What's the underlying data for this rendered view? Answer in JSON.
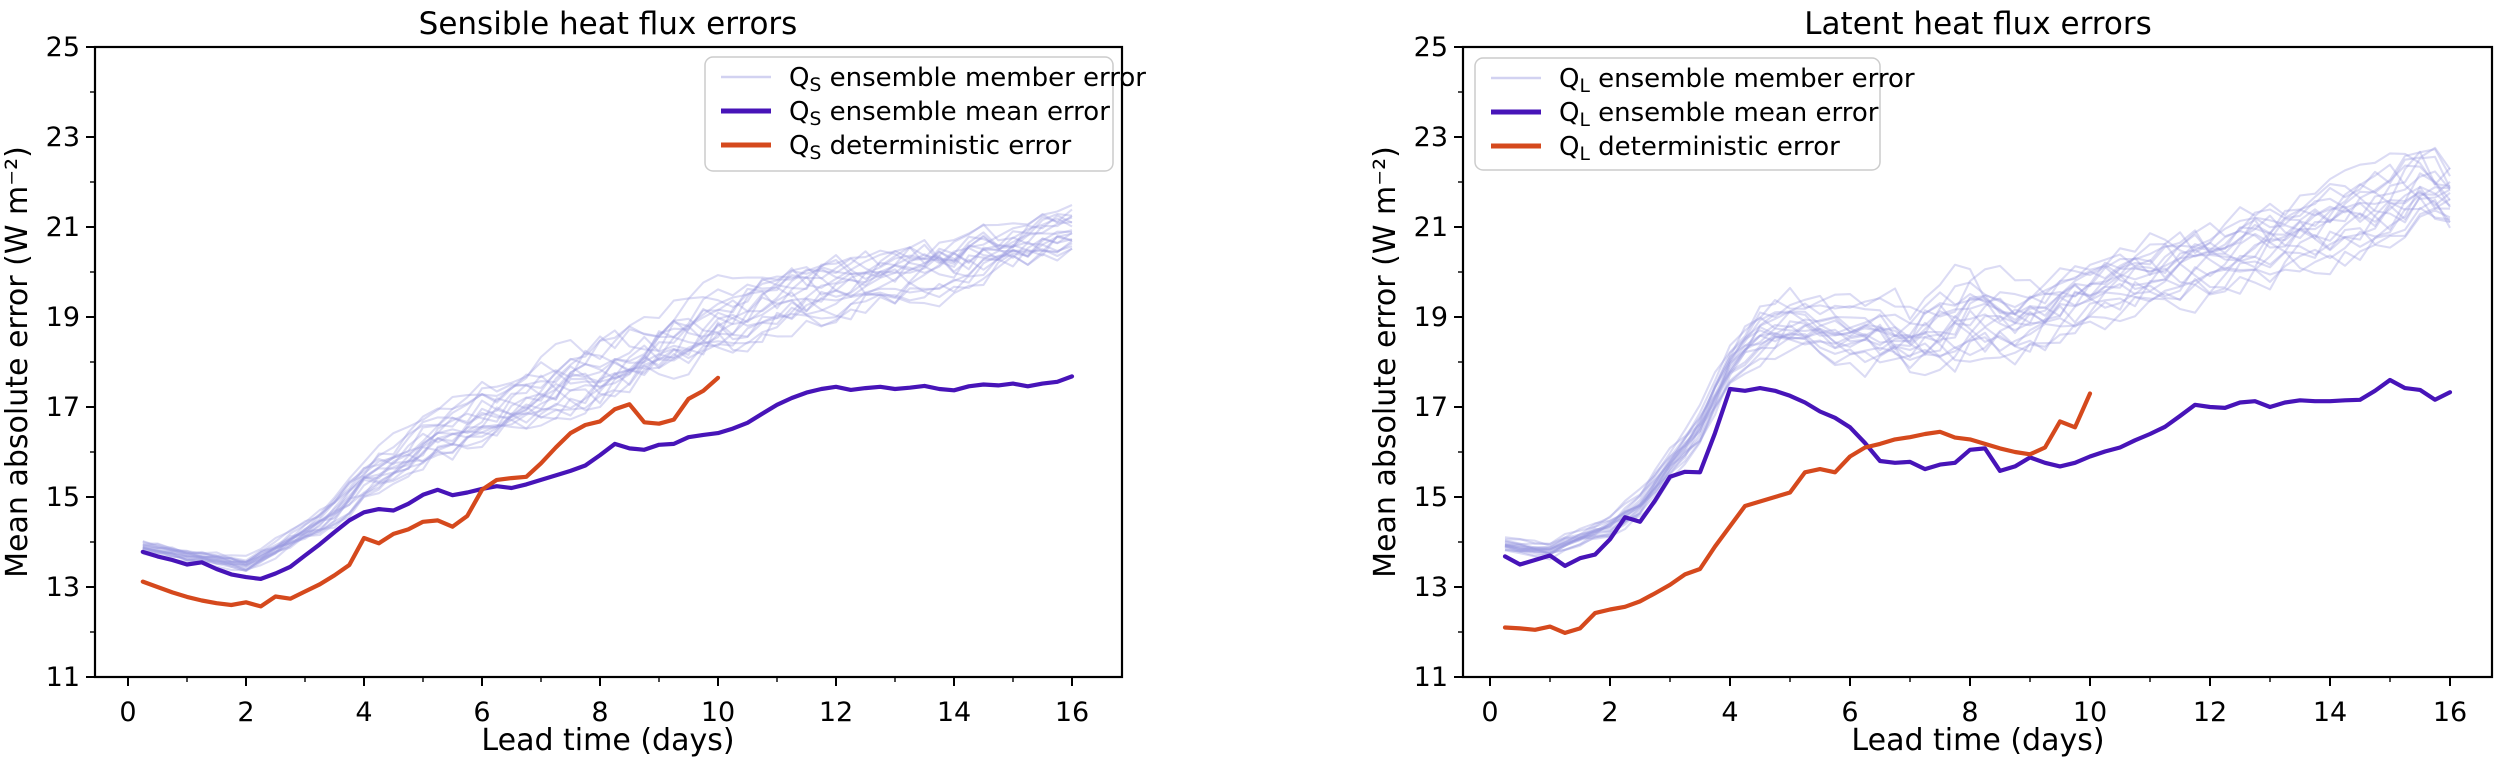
{
  "figure": {
    "background": "#ffffff",
    "description": "Two side-by-side line charts comparing forecast errors of sensible and latent heat flux"
  },
  "chart_data": [
    {
      "type": "line",
      "title": "Sensible heat flux errors",
      "xlabel": "Lead time (days)",
      "ylabel": "Mean absolute error (W m⁻²)",
      "xlim": [
        -0.55,
        16.85
      ],
      "ylim": [
        11,
        25
      ],
      "xticks": [
        0,
        2,
        4,
        6,
        8,
        10,
        12,
        14,
        16
      ],
      "xminorticks": [
        1,
        3,
        5,
        7,
        9,
        11,
        13,
        15
      ],
      "yticks": [
        11,
        13,
        15,
        17,
        19,
        21,
        23,
        25
      ],
      "yminorticks": [
        12,
        14,
        16,
        18,
        20,
        22,
        24
      ],
      "grid": false,
      "legend_position": "upper right",
      "series": [
        {
          "id": "members",
          "label": {
            "base": "Q",
            "sub": "S",
            "rest": "ensemble member error"
          },
          "kind": "ensemble",
          "color": "#9b9be1",
          "opacity": 0.36,
          "line_width": 2.1,
          "count": 20,
          "seed": 7,
          "x_start": 0.25,
          "x_step": 0.25,
          "x_end": 16,
          "envelope_x": [
            0.25,
            1,
            2,
            3,
            3.5,
            4,
            4.5,
            5,
            5.5,
            6,
            6.5,
            7,
            7.5,
            8,
            8.5,
            9,
            9.5,
            10,
            11,
            12,
            13,
            14,
            15,
            16
          ],
          "envelope_low": [
            13.63,
            13.5,
            13.3,
            13.9,
            14.2,
            14.7,
            15.0,
            15.3,
            15.6,
            15.9,
            16.1,
            16.3,
            16.55,
            16.8,
            17.05,
            17.3,
            17.55,
            17.8,
            18.3,
            18.7,
            19.0,
            19.3,
            19.7,
            20.25
          ],
          "envelope_high": [
            14.12,
            13.9,
            13.7,
            14.55,
            15.1,
            15.9,
            16.4,
            16.9,
            17.3,
            17.7,
            17.95,
            18.25,
            18.5,
            18.75,
            19.0,
            19.3,
            19.6,
            19.9,
            20.3,
            20.6,
            20.85,
            21.1,
            21.35,
            21.6
          ]
        },
        {
          "id": "ensemble-mean",
          "label": {
            "base": "Q",
            "sub": "S",
            "rest": "ensemble mean error"
          },
          "kind": "line",
          "color": "#4714b8",
          "opacity": 1,
          "line_width": 4.2,
          "x_start": 0.25,
          "x_step": 0.25,
          "values": [
            13.78,
            13.68,
            13.6,
            13.5,
            13.55,
            13.4,
            13.28,
            13.22,
            13.18,
            13.3,
            13.45,
            13.7,
            13.95,
            14.22,
            14.48,
            14.66,
            14.73,
            14.7,
            14.85,
            15.05,
            15.16,
            15.04,
            15.1,
            15.18,
            15.24,
            15.2,
            15.28,
            15.38,
            15.48,
            15.58,
            15.7,
            15.93,
            16.18,
            16.08,
            16.05,
            16.16,
            16.18,
            16.33,
            16.38,
            16.42,
            16.52,
            16.65,
            16.85,
            17.05,
            17.2,
            17.32,
            17.4,
            17.45,
            17.38,
            17.42,
            17.45,
            17.4,
            17.43,
            17.47,
            17.4,
            17.37,
            17.46,
            17.5,
            17.48,
            17.52,
            17.46,
            17.52,
            17.56,
            17.68
          ]
        },
        {
          "id": "deterministic",
          "label": {
            "base": "Q",
            "sub": "S",
            "rest": "deterministic error"
          },
          "kind": "line",
          "color": "#d5491d",
          "opacity": 1,
          "line_width": 4.2,
          "x_start": 0.25,
          "x_step": 0.25,
          "values": [
            13.12,
            13.0,
            12.88,
            12.78,
            12.7,
            12.64,
            12.6,
            12.66,
            12.57,
            12.79,
            12.74,
            12.9,
            13.06,
            13.26,
            13.49,
            14.09,
            13.97,
            14.18,
            14.28,
            14.45,
            14.48,
            14.34,
            14.58,
            15.16,
            15.38,
            15.42,
            15.45,
            15.75,
            16.1,
            16.42,
            16.6,
            16.68,
            16.95,
            17.06,
            16.66,
            16.63,
            16.72,
            17.18,
            17.36,
            17.65
          ]
        }
      ]
    },
    {
      "type": "line",
      "title": "Latent heat flux errors",
      "xlabel": "Lead time (days)",
      "ylabel": "Mean absolute error (W m⁻²)",
      "xlim": [
        -0.45,
        16.7
      ],
      "ylim": [
        11,
        25
      ],
      "xticks": [
        0,
        2,
        4,
        6,
        8,
        10,
        12,
        14,
        16
      ],
      "xminorticks": [
        1,
        3,
        5,
        7,
        9,
        11,
        13,
        15
      ],
      "yticks": [
        11,
        13,
        15,
        17,
        19,
        21,
        23,
        25
      ],
      "yminorticks": [
        12,
        14,
        16,
        18,
        20,
        22,
        24
      ],
      "grid": false,
      "legend_position": "upper left",
      "series": [
        {
          "id": "members",
          "label": {
            "base": "Q",
            "sub": "L",
            "rest": "ensemble member error"
          },
          "kind": "ensemble",
          "color": "#9b9be1",
          "opacity": 0.36,
          "line_width": 2.1,
          "count": 20,
          "seed": 11,
          "x_start": 0.25,
          "x_step": 0.25,
          "x_end": 16,
          "envelope_x": [
            0.25,
            1,
            2,
            2.5,
            3,
            3.5,
            3.75,
            4,
            4.5,
            5,
            5.5,
            6,
            6.5,
            7,
            7.5,
            8,
            8.5,
            9,
            9.5,
            10,
            11,
            12,
            13,
            14,
            15,
            15.5,
            16
          ],
          "envelope_low": [
            13.75,
            13.62,
            14.05,
            14.45,
            15.25,
            16.0,
            16.6,
            17.3,
            17.85,
            18.05,
            18.0,
            17.8,
            17.55,
            17.35,
            17.55,
            17.7,
            17.8,
            17.9,
            18.15,
            18.4,
            18.9,
            19.2,
            19.6,
            19.9,
            20.3,
            20.45,
            20.6
          ],
          "envelope_high": [
            14.15,
            14.02,
            14.7,
            15.25,
            16.2,
            17.1,
            17.8,
            18.6,
            19.5,
            19.8,
            19.55,
            19.5,
            19.75,
            19.6,
            19.95,
            20.3,
            20.1,
            20.0,
            20.3,
            20.6,
            21.0,
            21.3,
            21.7,
            22.1,
            22.6,
            23.2,
            22.8
          ]
        },
        {
          "id": "ensemble-mean",
          "label": {
            "base": "Q",
            "sub": "L",
            "rest": "ensemble mean error"
          },
          "kind": "line",
          "color": "#4714b8",
          "opacity": 1,
          "line_width": 4.2,
          "x_start": 0.25,
          "x_step": 0.25,
          "values": [
            13.68,
            13.5,
            13.6,
            13.7,
            13.47,
            13.64,
            13.72,
            14.06,
            14.55,
            14.45,
            14.92,
            15.45,
            15.56,
            15.55,
            16.42,
            17.4,
            17.36,
            17.42,
            17.36,
            17.25,
            17.1,
            16.9,
            16.76,
            16.55,
            16.2,
            15.8,
            15.76,
            15.78,
            15.62,
            15.72,
            15.76,
            16.05,
            16.08,
            15.58,
            15.68,
            15.88,
            15.76,
            15.68,
            15.76,
            15.9,
            16.01,
            16.1,
            16.26,
            16.4,
            16.56,
            16.8,
            17.05,
            17.0,
            16.98,
            17.1,
            17.13,
            17.0,
            17.1,
            17.15,
            17.13,
            17.13,
            17.15,
            17.16,
            17.36,
            17.6,
            17.42,
            17.38,
            17.16,
            17.33
          ]
        },
        {
          "id": "deterministic",
          "label": {
            "base": "Q",
            "sub": "L",
            "rest": "deterministic error"
          },
          "kind": "line",
          "color": "#d5491d",
          "opacity": 1,
          "line_width": 4.2,
          "x_start": 0.25,
          "x_step": 0.25,
          "values": [
            12.1,
            12.08,
            12.05,
            12.12,
            11.98,
            12.08,
            12.42,
            12.5,
            12.56,
            12.68,
            12.86,
            13.05,
            13.28,
            13.4,
            13.9,
            14.35,
            14.8,
            14.9,
            15.0,
            15.1,
            15.55,
            15.62,
            15.55,
            15.9,
            16.1,
            16.18,
            16.28,
            16.33,
            16.4,
            16.45,
            16.32,
            16.28,
            16.18,
            16.08,
            16.0,
            15.95,
            16.1,
            16.68,
            16.55,
            17.3
          ]
        }
      ]
    }
  ]
}
